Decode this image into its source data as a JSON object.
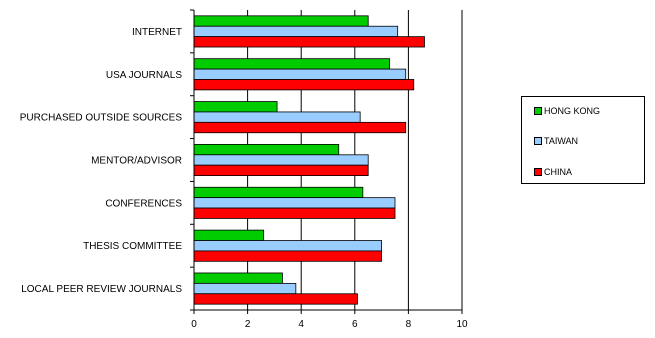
{
  "chart_data": {
    "type": "bar",
    "orientation": "horizontal",
    "categories": [
      "INTERNET",
      "USA JOURNALS",
      "PURCHASED OUTSIDE SOURCES",
      "MENTOR/ADVISOR",
      "CONFERENCES",
      "THESIS COMMITTEE",
      "LOCAL PEER REVIEW JOURNALS"
    ],
    "series": [
      {
        "name": "HONG KONG",
        "color": "#00cc00",
        "values": [
          6.5,
          7.3,
          3.1,
          5.4,
          6.3,
          2.6,
          3.3
        ]
      },
      {
        "name": "TAIWAN",
        "color": "#99ccff",
        "values": [
          7.6,
          7.9,
          6.2,
          6.5,
          7.5,
          7.0,
          3.8
        ]
      },
      {
        "name": "CHINA",
        "color": "#ff0000",
        "values": [
          8.6,
          8.2,
          7.9,
          6.5,
          7.5,
          7.0,
          6.1
        ]
      }
    ],
    "x_ticks": [
      "0",
      "2",
      "4",
      "6",
      "8",
      "10"
    ],
    "xlim": [
      0,
      10
    ],
    "grid": true,
    "legend_position": "right",
    "title": "",
    "xlabel": "",
    "ylabel": ""
  }
}
